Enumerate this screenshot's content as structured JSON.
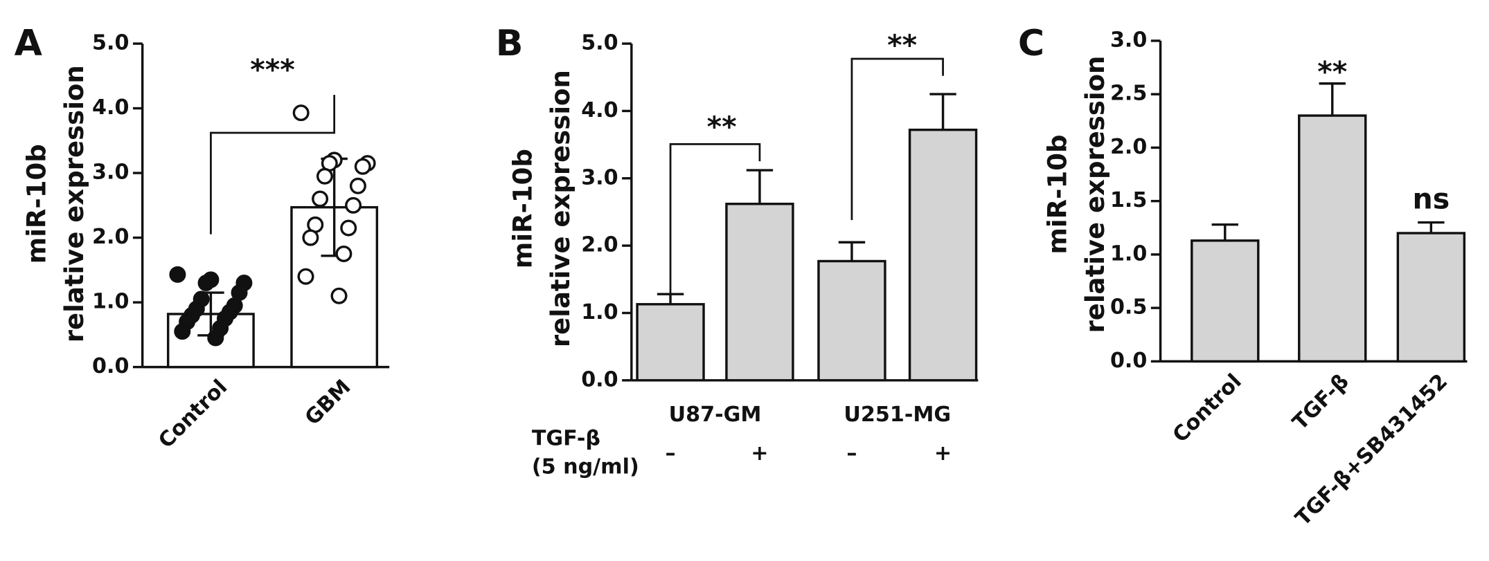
{
  "chart_data": [
    {
      "type": "bar",
      "panel": "A",
      "ylabel": [
        "miR-10b",
        "relative expression"
      ],
      "categories": [
        "Control",
        "GBM"
      ],
      "values": [
        0.82,
        2.47
      ],
      "errors": [
        0.33,
        0.75
      ],
      "error_direction": "both",
      "points": [
        [
          1.43,
          1.35,
          1.3,
          1.3,
          1.15,
          1.05,
          0.95,
          0.9,
          0.85,
          0.8,
          0.75,
          0.7,
          0.6,
          0.55,
          0.45
        ],
        [
          3.93,
          3.2,
          3.15,
          3.15,
          3.1,
          2.95,
          2.8,
          2.6,
          2.5,
          2.2,
          2.15,
          2.0,
          1.75,
          1.4,
          1.1
        ]
      ],
      "point_fill": [
        "#111111",
        "#ffffff"
      ],
      "color": "#ffffff",
      "ylim": [
        0,
        5
      ],
      "yticks": [
        {
          "value": 0,
          "label": "0.0"
        },
        {
          "value": 1,
          "label": "1.0"
        },
        {
          "value": 2,
          "label": "2.0"
        },
        {
          "value": 3,
          "label": "3.0"
        },
        {
          "value": 4,
          "label": "4.0"
        },
        {
          "value": 5,
          "label": "5.0"
        }
      ],
      "annotations": [
        "***"
      ]
    },
    {
      "type": "bar",
      "panel": "B",
      "ylabel": [
        "miR-10b",
        "relative expression"
      ],
      "groups": [
        "U87-GM",
        "U251-MG"
      ],
      "treatment_label": [
        "TGF-β",
        "(5 ng/ml)"
      ],
      "categories": [
        "–",
        "+",
        "–",
        "+"
      ],
      "values": [
        1.13,
        2.62,
        1.77,
        3.72
      ],
      "errors": [
        0.15,
        0.5,
        0.28,
        0.53
      ],
      "error_direction": "up",
      "color": "#d4d4d4",
      "ylim": [
        0,
        5
      ],
      "yticks": [
        {
          "value": 0,
          "label": "0.0"
        },
        {
          "value": 1,
          "label": "1.0"
        },
        {
          "value": 2,
          "label": "2.0"
        },
        {
          "value": 3,
          "label": "3.0"
        },
        {
          "value": 4,
          "label": "4.0"
        },
        {
          "value": 5,
          "label": "5.0"
        }
      ],
      "annotations": [
        "**",
        "**"
      ]
    },
    {
      "type": "bar",
      "panel": "C",
      "ylabel": [
        "miR-10b",
        "relative expression"
      ],
      "categories": [
        "Control",
        "TGF-β",
        "TGF-β+SB431452"
      ],
      "values": [
        1.13,
        2.3,
        1.2
      ],
      "errors": [
        0.15,
        0.3,
        0.1
      ],
      "error_direction": "up",
      "color": "#d4d4d4",
      "ylim": [
        0,
        3
      ],
      "yticks": [
        {
          "value": 0,
          "label": "0.0"
        },
        {
          "value": 0.5,
          "label": "0.5"
        },
        {
          "value": 1,
          "label": "1.0"
        },
        {
          "value": 1.5,
          "label": "1.5"
        },
        {
          "value": 2,
          "label": "2.0"
        },
        {
          "value": 2.5,
          "label": "2.5"
        },
        {
          "value": 3,
          "label": "3.0"
        }
      ],
      "annotations": [
        "**",
        "ns"
      ]
    }
  ]
}
